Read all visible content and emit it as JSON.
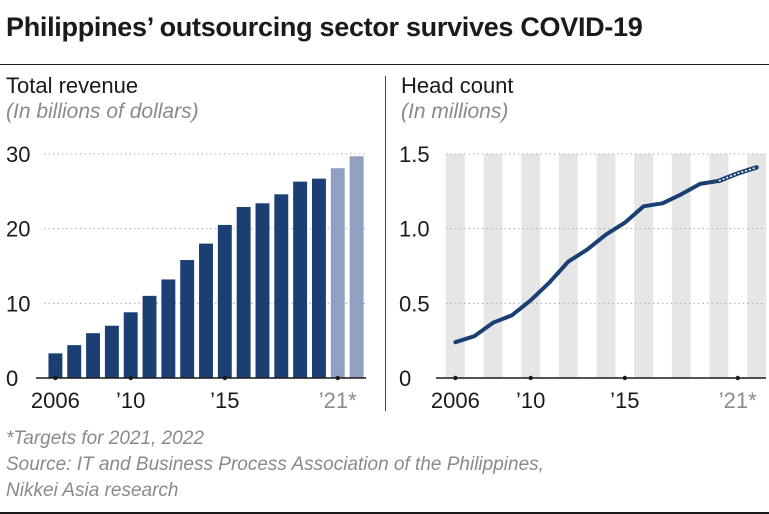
{
  "header": {
    "title": "Philippines’ outsourcing sector survives COVID-19"
  },
  "panels": {
    "revenue": {
      "title": "Total revenue",
      "unit": "(In billions of dollars)"
    },
    "headcount": {
      "title": "Head count",
      "unit": "(In millions)"
    }
  },
  "footer": {
    "note": "*Targets for 2021, 2022",
    "source_line1": "Source: IT and Business Process Association of the Philippines,",
    "source_line2": "Nikkei Asia research"
  },
  "colors": {
    "actual": "#1c3f73",
    "target": "#8fa0c2",
    "band": "#e6e6e6",
    "grid": "#aaaaaa",
    "axis": "#1a1a1a",
    "muted": "#8a8a8a"
  },
  "chart_data": [
    {
      "type": "bar",
      "title": "Total revenue",
      "ylabel": "(In billions of dollars)",
      "ylim": [
        0,
        30
      ],
      "yticks": [
        "0",
        "10",
        "20",
        "30"
      ],
      "xtick_labels": [
        "2006",
        "’10",
        "’15",
        "’21*"
      ],
      "categories": [
        2006,
        2007,
        2008,
        2009,
        2010,
        2011,
        2012,
        2013,
        2014,
        2015,
        2016,
        2017,
        2018,
        2019,
        2020,
        2021,
        2022
      ],
      "values": [
        3.3,
        4.4,
        6.0,
        7.0,
        8.8,
        11.0,
        13.2,
        15.8,
        18.0,
        20.5,
        22.9,
        23.4,
        24.6,
        26.3,
        26.7,
        28.1,
        29.7
      ],
      "targets_from": 2021,
      "grid": true
    },
    {
      "type": "line",
      "title": "Head count",
      "ylabel": "(In millions)",
      "ylim": [
        0,
        1.5
      ],
      "yticks": [
        "0",
        "0.5",
        "1.0",
        "1.5"
      ],
      "xtick_labels": [
        "2006",
        "’10",
        "’15",
        "’21*"
      ],
      "x": [
        2006,
        2007,
        2008,
        2009,
        2010,
        2011,
        2012,
        2013,
        2014,
        2015,
        2016,
        2017,
        2018,
        2019,
        2020,
        2021,
        2022
      ],
      "values": [
        0.24,
        0.28,
        0.37,
        0.42,
        0.52,
        0.64,
        0.78,
        0.86,
        0.96,
        1.04,
        1.15,
        1.17,
        1.23,
        1.3,
        1.32,
        1.37,
        1.41
      ],
      "targets_from": 2021,
      "grid": true,
      "alternating_bands": true
    }
  ]
}
